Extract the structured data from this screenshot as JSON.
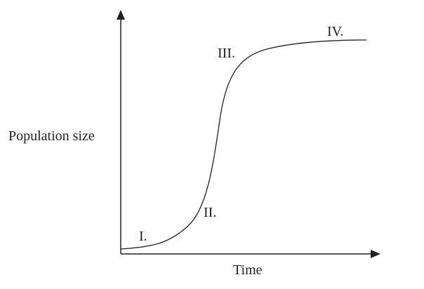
{
  "axes": {
    "y_label": "Population size",
    "x_label": "Time"
  },
  "phases": [
    "I.",
    "II.",
    "III.",
    "IV."
  ]
}
